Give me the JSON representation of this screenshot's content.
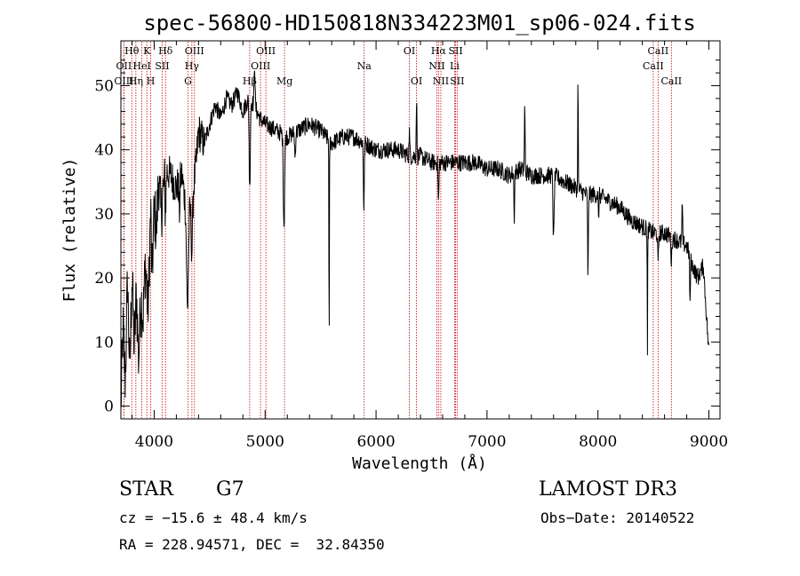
{
  "chart_data": {
    "type": "line",
    "title": "spec-56800-HD150818N334223M01_sp06-024.fits",
    "xlabel": "Wavelength (Å)",
    "ylabel": "Flux (relative)",
    "xlim": [
      3700,
      9100
    ],
    "ylim": [
      -2,
      57
    ],
    "x_ticks": [
      4000,
      5000,
      6000,
      7000,
      8000,
      9000
    ],
    "y_ticks": [
      0,
      10,
      20,
      30,
      40,
      50
    ],
    "grid": false,
    "line_color": "#000000",
    "marker_color": "#cc0000",
    "series": [
      {
        "anchors": [
          [
            3700,
            0
          ],
          [
            3720,
            12
          ],
          [
            3740,
            4
          ],
          [
            3760,
            20
          ],
          [
            3780,
            5
          ],
          [
            3800,
            21
          ],
          [
            3820,
            9
          ],
          [
            3840,
            18
          ],
          [
            3860,
            7
          ],
          [
            3880,
            17
          ],
          [
            3900,
            14
          ],
          [
            3920,
            22
          ],
          [
            3940,
            12
          ],
          [
            3960,
            24
          ],
          [
            3980,
            19
          ],
          [
            4000,
            31
          ],
          [
            4020,
            27
          ],
          [
            4040,
            36
          ],
          [
            4060,
            30
          ],
          [
            4080,
            33
          ],
          [
            4100,
            37
          ],
          [
            4150,
            36
          ],
          [
            4200,
            34
          ],
          [
            4250,
            36
          ],
          [
            4300,
            29
          ],
          [
            4340,
            32
          ],
          [
            4380,
            38
          ],
          [
            4400,
            43
          ],
          [
            4450,
            41
          ],
          [
            4500,
            44
          ],
          [
            4550,
            47
          ],
          [
            4600,
            45
          ],
          [
            4650,
            48
          ],
          [
            4700,
            47
          ],
          [
            4750,
            49
          ],
          [
            4800,
            46
          ],
          [
            4850,
            48
          ],
          [
            4900,
            47
          ],
          [
            4950,
            45
          ],
          [
            5000,
            44
          ],
          [
            5100,
            43
          ],
          [
            5200,
            42
          ],
          [
            5300,
            43
          ],
          [
            5400,
            44
          ],
          [
            5500,
            43
          ],
          [
            5600,
            41
          ],
          [
            5700,
            42
          ],
          [
            5800,
            42
          ],
          [
            5900,
            41
          ],
          [
            6000,
            40
          ],
          [
            6100,
            40
          ],
          [
            6200,
            40
          ],
          [
            6300,
            39
          ],
          [
            6400,
            39
          ],
          [
            6500,
            38
          ],
          [
            6600,
            38
          ],
          [
            6700,
            38
          ],
          [
            6800,
            38
          ],
          [
            6900,
            38
          ],
          [
            7000,
            37
          ],
          [
            7100,
            37
          ],
          [
            7200,
            36
          ],
          [
            7300,
            37
          ],
          [
            7400,
            36
          ],
          [
            7500,
            36
          ],
          [
            7600,
            36
          ],
          [
            7700,
            35
          ],
          [
            7800,
            34
          ],
          [
            7900,
            33
          ],
          [
            8000,
            33
          ],
          [
            8100,
            32
          ],
          [
            8200,
            31
          ],
          [
            8300,
            29
          ],
          [
            8400,
            28
          ],
          [
            8500,
            27
          ],
          [
            8600,
            27
          ],
          [
            8700,
            26
          ],
          [
            8800,
            25
          ],
          [
            8850,
            22
          ],
          [
            8900,
            20
          ],
          [
            8950,
            22
          ],
          [
            9000,
            8
          ]
        ],
        "features": [
          [
            3934,
            4,
            6
          ],
          [
            3969,
            8,
            5
          ],
          [
            4102,
            -6,
            5
          ],
          [
            4227,
            -5,
            4
          ],
          [
            4300,
            -14,
            8
          ],
          [
            4340,
            -8,
            6
          ],
          [
            4861,
            -14,
            5
          ],
          [
            4905,
            7,
            4
          ],
          [
            5170,
            -14,
            6
          ],
          [
            5270,
            -4,
            4
          ],
          [
            5577,
            -34,
            2
          ],
          [
            5890,
            -10,
            4
          ],
          [
            6300,
            4,
            3
          ],
          [
            6365,
            9,
            3
          ],
          [
            6563,
            -6,
            4
          ],
          [
            7246,
            -7,
            3
          ],
          [
            7340,
            10,
            3
          ],
          [
            7600,
            -10,
            5
          ],
          [
            7820,
            20,
            2
          ],
          [
            7910,
            -14,
            3
          ],
          [
            8005,
            -4,
            3
          ],
          [
            8446,
            -20,
            2
          ],
          [
            8542,
            -5,
            4
          ],
          [
            8662,
            -4,
            4
          ],
          [
            8760,
            6,
            3
          ],
          [
            8830,
            -8,
            3
          ]
        ]
      }
    ],
    "lines": [
      {
        "name": "Hθ",
        "wave": 3798,
        "row": 0
      },
      {
        "name": "OII",
        "wave": 3727,
        "row": 1
      },
      {
        "name": "OIII",
        "wave": 3727,
        "row": 2
      },
      {
        "name": "K",
        "wave": 3934,
        "row": 0
      },
      {
        "name": "HeI",
        "wave": 3889,
        "row": 1
      },
      {
        "name": "Hη",
        "wave": 3835,
        "row": 2
      },
      {
        "name": "H",
        "wave": 3969,
        "row": 2
      },
      {
        "name": "Hδ",
        "wave": 4102,
        "row": 0
      },
      {
        "name": "SII",
        "wave": 4072,
        "row": 1
      },
      {
        "name": "OIII",
        "wave": 4363,
        "row": 0
      },
      {
        "name": "Hγ",
        "wave": 4340,
        "row": 1
      },
      {
        "name": "G",
        "wave": 4305,
        "row": 2
      },
      {
        "name": "Hβ",
        "wave": 4861,
        "row": 2
      },
      {
        "name": "OIII",
        "wave": 5007,
        "row": 0
      },
      {
        "name": "OIII",
        "wave": 4959,
        "row": 1
      },
      {
        "name": "Mg",
        "wave": 5175,
        "row": 2
      },
      {
        "name": "Na",
        "wave": 5893,
        "row": 1
      },
      {
        "name": "OI",
        "wave": 6300,
        "row": 0
      },
      {
        "name": "OI",
        "wave": 6364,
        "row": 2
      },
      {
        "name": "Hα",
        "wave": 6563,
        "row": 0
      },
      {
        "name": "NII",
        "wave": 6548,
        "row": 1
      },
      {
        "name": "NII",
        "wave": 6584,
        "row": 2
      },
      {
        "name": "SII",
        "wave": 6717,
        "row": 0
      },
      {
        "name": "Li",
        "wave": 6708,
        "row": 1
      },
      {
        "name": "SII",
        "wave": 6731,
        "row": 2
      },
      {
        "name": "CaII",
        "wave": 8542,
        "row": 0
      },
      {
        "name": "CaII",
        "wave": 8498,
        "row": 1
      },
      {
        "name": "CaII",
        "wave": 8662,
        "row": 2
      }
    ]
  },
  "info": {
    "object_class": "STAR",
    "subclass": "G7",
    "survey": "LAMOST DR3",
    "cz": "cz = −15.6 ± 48.4 km/s",
    "obs_date": "Obs−Date: 20140522",
    "coords": "RA = 228.94571, DEC =  32.84350"
  }
}
